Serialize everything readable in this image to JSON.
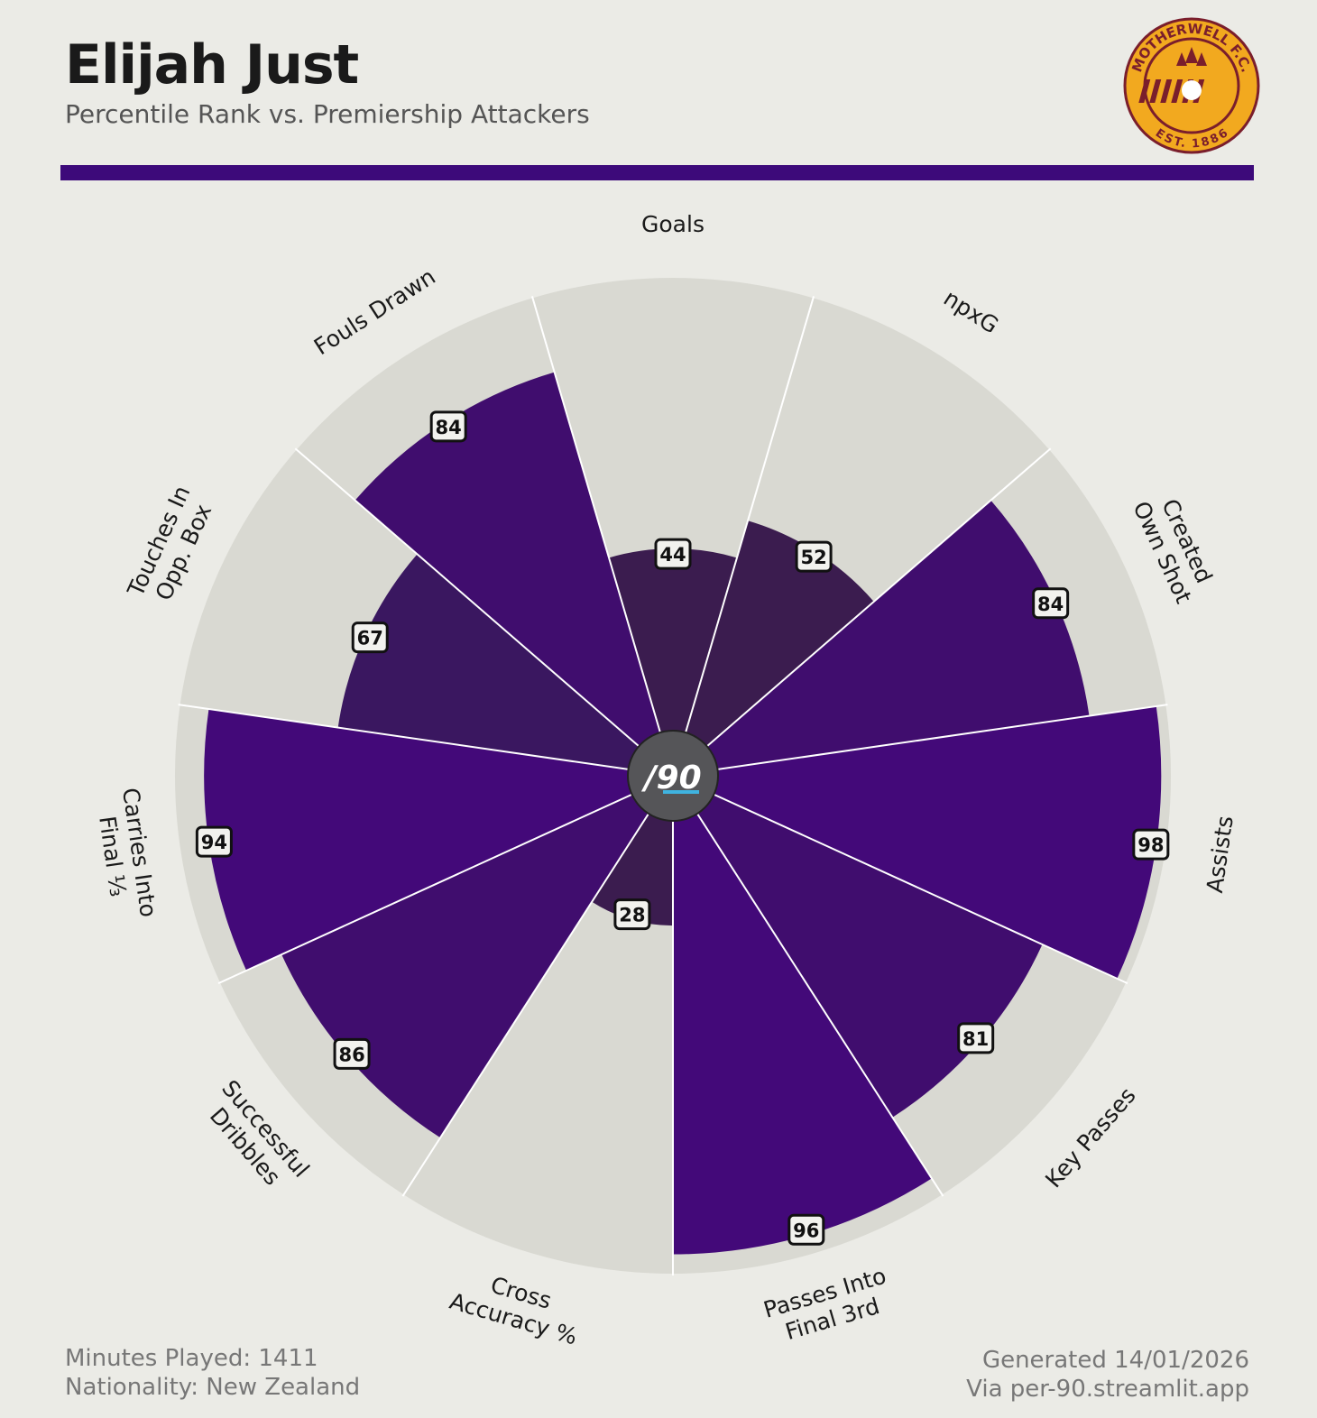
{
  "header": {
    "title": "Elijah Just",
    "subtitle": "Percentile Rank vs. Premiership Attackers"
  },
  "badge": {
    "name": "motherwell-fc-crest",
    "text_top": "MOTHERWELL F.C.",
    "text_bottom": "EST. 1886",
    "colors": {
      "gold": "#f2a91f",
      "maroon": "#7a1e2c"
    }
  },
  "colors": {
    "accent": "#3d0a7a",
    "background": "#ebebe6",
    "slice_background": "#d9d9d2",
    "center_circle": "#555558"
  },
  "center_logo": {
    "text": "/90",
    "accent": "#3fb3e0"
  },
  "chart_data": {
    "type": "polar-bar",
    "title": "Elijah Just",
    "subtitle": "Percentile Rank vs. Premiership Attackers",
    "rlim": [
      0,
      100
    ],
    "grid": false,
    "categories": [
      "Goals",
      "npxG",
      "Created Own Shot",
      "Assists",
      "Key Passes",
      "Passes Into Final 3rd",
      "Cross Accuracy %",
      "Successful Dribbles",
      "Carries Into Final ⅓",
      "Touches In Opp. Box",
      "Fouls Drawn"
    ],
    "values": [
      44,
      52,
      84,
      98,
      81,
      96,
      28,
      86,
      94,
      67,
      84
    ],
    "data_labels": [
      "44",
      "52",
      "84",
      "98",
      "81",
      "96",
      "28",
      "86",
      "94",
      "67",
      "84"
    ]
  },
  "footer": {
    "minutes": "Minutes Played: 1411",
    "nationality": "Nationality: New Zealand",
    "generated": "Generated 14/01/2026",
    "via": "Via per-90.streamlit.app"
  }
}
